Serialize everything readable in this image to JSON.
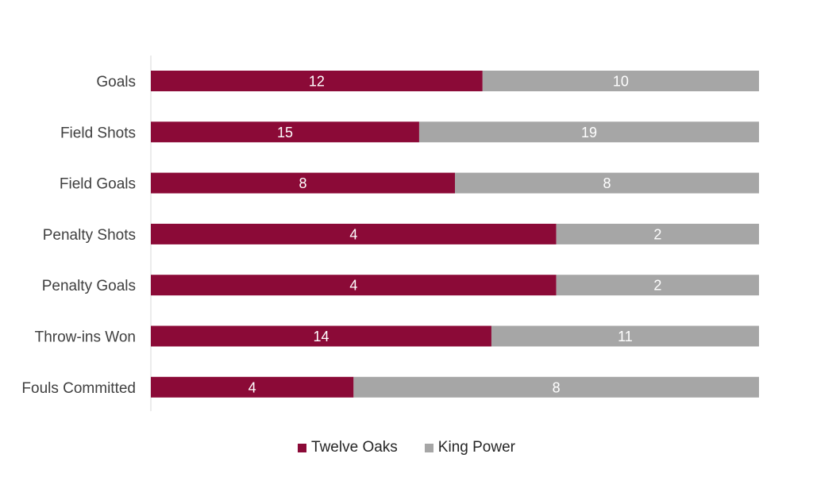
{
  "chart_data": {
    "type": "bar",
    "orientation": "horizontal",
    "stacked": "percent",
    "categories": [
      "Goals",
      "Field Shots",
      "Field Goals",
      "Penalty Shots",
      "Penalty Goals",
      "Throw-ins Won",
      "Fouls Committed"
    ],
    "series": [
      {
        "name": "Twelve Oaks",
        "color": "#8B0A37",
        "values": [
          12,
          15,
          8,
          4,
          4,
          14,
          4
        ]
      },
      {
        "name": "King Power",
        "color": "#A6A6A6",
        "values": [
          10,
          19,
          8,
          2,
          2,
          11,
          8
        ]
      }
    ],
    "legend_position": "bottom",
    "grid": false,
    "data_labels": true
  }
}
